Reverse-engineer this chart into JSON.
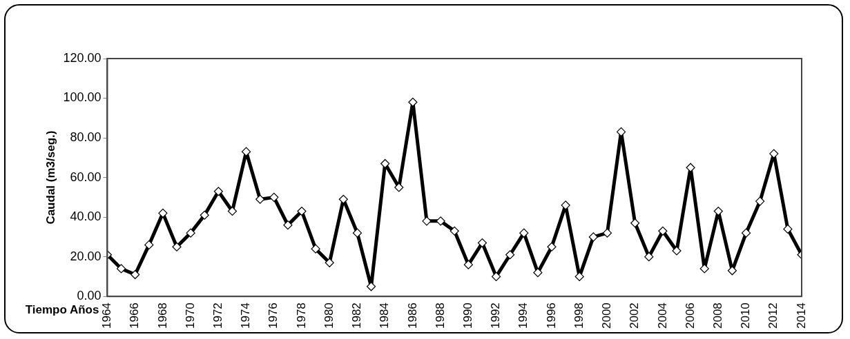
{
  "chart_data": {
    "type": "line",
    "xlabel": "Tiempo Años",
    "ylabel": "Caudal (m3/seg.)",
    "x": [
      1964,
      1965,
      1966,
      1967,
      1968,
      1969,
      1970,
      1971,
      1972,
      1973,
      1974,
      1975,
      1976,
      1977,
      1978,
      1979,
      1980,
      1981,
      1982,
      1983,
      1984,
      1985,
      1986,
      1987,
      1988,
      1989,
      1990,
      1991,
      1992,
      1993,
      1994,
      1995,
      1996,
      1997,
      1998,
      1999,
      2000,
      2001,
      2002,
      2003,
      2004,
      2005,
      2006,
      2007,
      2008,
      2009,
      2010,
      2011,
      2012,
      2013,
      2014
    ],
    "series": [
      {
        "color": "#000000",
        "values": [
          21,
          14,
          11,
          26,
          42,
          25,
          32,
          41,
          53,
          43,
          73,
          49,
          50,
          36,
          43,
          24,
          17,
          49,
          32,
          5,
          67,
          55,
          98,
          38,
          38,
          33,
          16,
          27,
          10,
          21,
          32,
          12,
          25,
          46,
          10,
          30,
          32,
          83,
          37,
          20,
          33,
          23,
          65,
          14,
          43,
          13,
          32,
          48,
          72,
          34,
          21
        ]
      }
    ],
    "xlim": [
      1964,
      2014
    ],
    "xticks": [
      1964,
      1966,
      1968,
      1970,
      1972,
      1974,
      1976,
      1978,
      1980,
      1982,
      1984,
      1986,
      1988,
      1990,
      1992,
      1994,
      1996,
      1998,
      2000,
      2002,
      2004,
      2006,
      2008,
      2010,
      2012,
      2014
    ],
    "ylim": [
      0,
      120
    ],
    "yticks": [
      {
        "value": 0,
        "label": "0.00"
      },
      {
        "value": 20,
        "label": "20.00"
      },
      {
        "value": 40,
        "label": "40.00"
      },
      {
        "value": 60,
        "label": "60.00"
      },
      {
        "value": 80,
        "label": "80.00"
      },
      {
        "value": 100,
        "label": "100.00"
      },
      {
        "value": 120,
        "label": "120.00"
      }
    ],
    "grid": false,
    "legend": false,
    "marker": "diamond",
    "line_style": "solid"
  }
}
